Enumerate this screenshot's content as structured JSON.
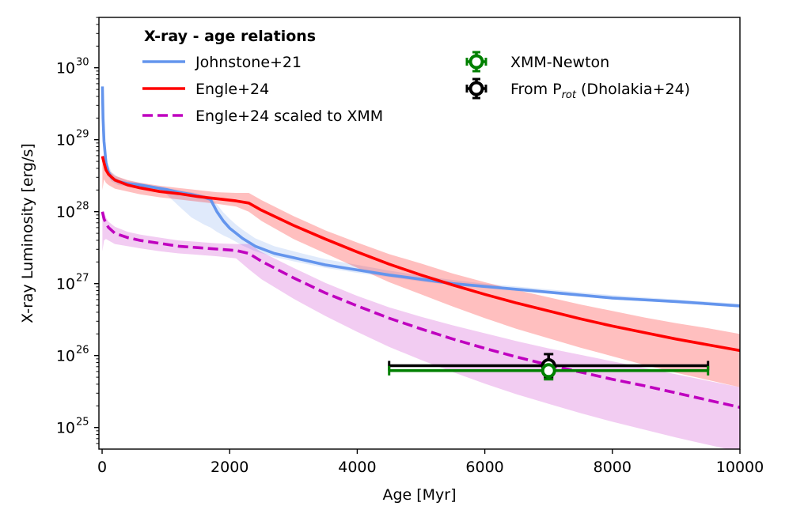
{
  "chart_data": {
    "type": "line",
    "xlabel": "Age [Myr]",
    "ylabel": "X-ray Luminosity [erg/s]",
    "xlim": [
      -50,
      10000
    ],
    "ylim_log10": [
      24.7,
      30.7
    ],
    "yscale": "log",
    "grid": false,
    "x_ticks": [
      0,
      2000,
      4000,
      6000,
      8000,
      10000
    ],
    "x_tick_labels": [
      "0",
      "2000",
      "4000",
      "6000",
      "8000",
      "10000"
    ],
    "y_ticks_log10": [
      25,
      26,
      27,
      28,
      29,
      30
    ],
    "y_tick_labels": [
      {
        "base": "10",
        "exp": "25"
      },
      {
        "base": "10",
        "exp": "26"
      },
      {
        "base": "10",
        "exp": "27"
      },
      {
        "base": "10",
        "exp": "28"
      },
      {
        "base": "10",
        "exp": "29"
      },
      {
        "base": "10",
        "exp": "30"
      }
    ],
    "legend": {
      "title": "X-ray - age relations",
      "placement": "top-left",
      "left_entries": [
        {
          "label": "Johnstone+21",
          "color": "#6495ed",
          "style": "solid"
        },
        {
          "label": "Engle+24",
          "color": "#ff0000",
          "style": "solid"
        },
        {
          "label": "Engle+24 scaled to XMM",
          "color": "#bf00bf",
          "style": "dashed"
        }
      ],
      "right_entries": [
        {
          "label": "XMM-Newton",
          "color": "#008000",
          "marker": "errorbar"
        },
        {
          "label_main": "From P",
          "label_sub": "rot",
          "label_tail": " (Dholakia+24)",
          "color": "#000000",
          "marker": "errorbar"
        }
      ]
    },
    "series": [
      {
        "name": "Johnstone+21",
        "color": "#6495ed",
        "x": [
          5,
          15,
          30,
          60,
          100,
          150,
          250,
          400,
          600,
          800,
          1000,
          1200,
          1400,
          1600,
          1700,
          1800,
          1900,
          2000,
          2100,
          2200,
          2400,
          2700,
          3000,
          3500,
          4000,
          4500,
          5000,
          5500,
          6000,
          7000,
          8000,
          9000,
          10000
        ],
        "y": [
          29.74,
          29.3,
          28.98,
          28.68,
          28.55,
          28.47,
          28.42,
          28.39,
          28.37,
          28.34,
          28.31,
          28.27,
          28.24,
          28.2,
          28.17,
          28.0,
          27.87,
          27.77,
          27.7,
          27.63,
          27.52,
          27.42,
          27.36,
          27.26,
          27.19,
          27.12,
          27.06,
          27.0,
          26.96,
          26.88,
          26.8,
          26.75,
          26.69
        ],
        "band_upper": [
          29.74,
          29.3,
          29.05,
          28.78,
          28.64,
          28.55,
          28.48,
          28.43,
          28.4,
          28.36,
          28.33,
          28.3,
          28.27,
          28.23,
          28.2,
          28.1,
          27.99,
          27.9,
          27.82,
          27.75,
          27.63,
          27.52,
          27.45,
          27.34,
          27.26,
          27.18,
          27.11,
          27.05,
          27.0,
          26.92,
          26.84,
          26.78,
          26.72
        ],
        "band_lower": [
          29.74,
          29.3,
          28.9,
          28.6,
          28.48,
          28.42,
          28.37,
          28.35,
          28.33,
          28.3,
          28.25,
          28.08,
          27.92,
          27.82,
          27.78,
          27.72,
          27.67,
          27.63,
          27.58,
          27.53,
          27.45,
          27.37,
          27.31,
          27.22,
          27.15,
          27.09,
          27.03,
          26.98,
          26.94,
          26.86,
          26.78,
          26.73,
          26.67
        ]
      },
      {
        "name": "Engle+24",
        "color": "#ff0000",
        "x": [
          5,
          30,
          60,
          100,
          200,
          400,
          600,
          900,
          1200,
          1500,
          1800,
          2100,
          2300,
          2500,
          3000,
          3500,
          4000,
          4500,
          5000,
          5500,
          6000,
          6500,
          7000,
          7500,
          8000,
          8500,
          9000,
          9500,
          10000
        ],
        "y": [
          28.77,
          28.68,
          28.58,
          28.52,
          28.44,
          28.37,
          28.33,
          28.28,
          28.25,
          28.21,
          28.18,
          28.15,
          28.12,
          28.02,
          27.81,
          27.62,
          27.44,
          27.27,
          27.12,
          26.98,
          26.85,
          26.73,
          26.62,
          26.51,
          26.41,
          26.32,
          26.23,
          26.15,
          26.07
        ],
        "band_upper": [
          28.77,
          28.73,
          28.64,
          28.58,
          28.5,
          28.44,
          28.4,
          28.36,
          28.33,
          28.3,
          28.27,
          28.26,
          28.26,
          28.16,
          27.94,
          27.74,
          27.57,
          27.41,
          27.28,
          27.14,
          27.02,
          26.91,
          26.81,
          26.71,
          26.62,
          26.53,
          26.45,
          26.38,
          26.3
        ],
        "band_lower": [
          28.3,
          28.45,
          28.4,
          28.37,
          28.32,
          28.28,
          28.24,
          28.2,
          28.17,
          28.14,
          28.11,
          28.07,
          28.0,
          27.87,
          27.62,
          27.42,
          27.22,
          27.02,
          26.85,
          26.68,
          26.52,
          26.37,
          26.24,
          26.11,
          25.99,
          25.87,
          25.76,
          25.66,
          25.56
        ]
      },
      {
        "name": "Engle+24 scaled to XMM",
        "color": "#bf00bf",
        "dashed": true,
        "x": [
          5,
          30,
          60,
          100,
          200,
          400,
          600,
          900,
          1200,
          1500,
          1800,
          2100,
          2300,
          2500,
          3000,
          3500,
          4000,
          4500,
          5000,
          5500,
          6000,
          6500,
          7000,
          7500,
          8000,
          8500,
          9000,
          9500,
          10000
        ],
        "y": [
          28.0,
          27.9,
          27.84,
          27.78,
          27.7,
          27.64,
          27.6,
          27.56,
          27.52,
          27.5,
          27.48,
          27.46,
          27.42,
          27.31,
          27.08,
          26.87,
          26.69,
          26.52,
          26.37,
          26.23,
          26.1,
          25.98,
          25.87,
          25.77,
          25.67,
          25.58,
          25.48,
          25.38,
          25.28
        ],
        "band_upper": [
          28.0,
          27.99,
          27.92,
          27.86,
          27.79,
          27.72,
          27.68,
          27.64,
          27.6,
          27.58,
          27.56,
          27.55,
          27.55,
          27.44,
          27.22,
          27.01,
          26.83,
          26.67,
          26.54,
          26.42,
          26.31,
          26.2,
          26.1,
          26.01,
          25.92,
          25.83,
          25.74,
          25.65,
          25.56
        ],
        "band_lower": [
          27.45,
          27.6,
          27.62,
          27.6,
          27.55,
          27.52,
          27.49,
          27.45,
          27.42,
          27.4,
          27.38,
          27.35,
          27.2,
          27.06,
          26.79,
          26.55,
          26.33,
          26.12,
          25.94,
          25.77,
          25.61,
          25.46,
          25.33,
          25.2,
          25.08,
          24.97,
          24.86,
          24.76,
          24.66
        ]
      }
    ],
    "errorbar_points": [
      {
        "name": "XMM-Newton",
        "color": "#008000",
        "x": 7000,
        "xerr": [
          2500,
          2500
        ],
        "y": 25.79,
        "yerr_log10": [
          0.12,
          0.0
        ]
      },
      {
        "name": "From P_rot (Dholakia+24)",
        "color": "#000000",
        "x": 7000,
        "xerr": [
          2500,
          2500
        ],
        "y": 25.86,
        "yerr_log10": [
          0.16,
          0.16
        ]
      }
    ]
  }
}
